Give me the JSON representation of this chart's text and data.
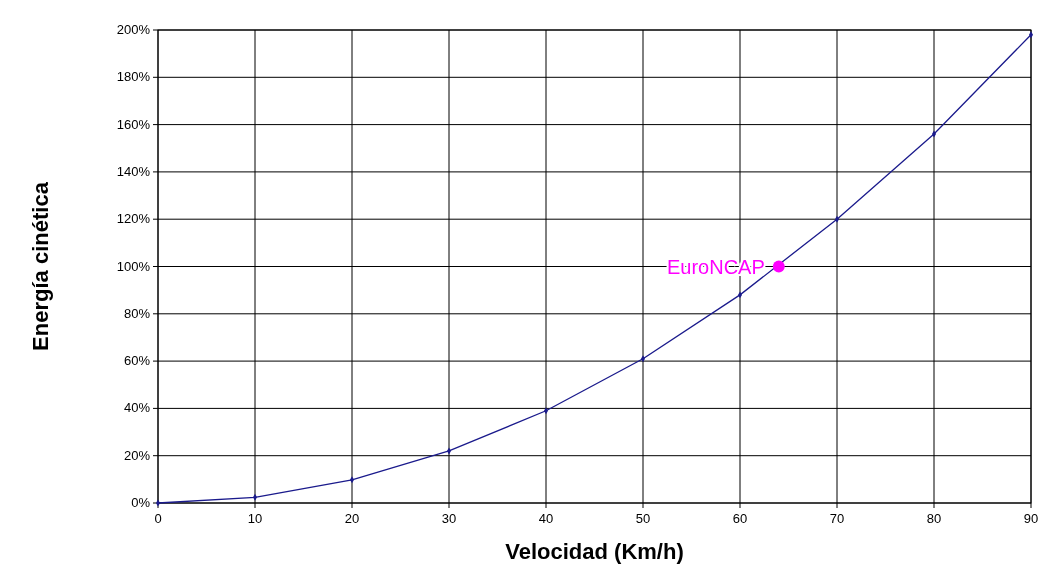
{
  "chart_data": {
    "type": "line",
    "xlabel": "Velocidad (Km/h)",
    "ylabel": "Energía cinética",
    "x": [
      0,
      10,
      20,
      30,
      40,
      50,
      60,
      70,
      80,
      90
    ],
    "series": [
      {
        "color": "#1a1a8c",
        "values": [
          0,
          2.4,
          9.8,
          22,
          39,
          61,
          88,
          120,
          156,
          198
        ]
      },
      {
        "type": "scatter",
        "name": "EuroNCAP",
        "color": "#ff00ff",
        "x": [
          64
        ],
        "values": [
          100
        ],
        "marker": "circle"
      }
    ],
    "xlim": [
      0,
      90
    ],
    "xticks": [
      0,
      10,
      20,
      30,
      40,
      50,
      60,
      70,
      80,
      90
    ],
    "ylim": [
      0,
      200
    ],
    "yticks": [
      {
        "value": 0,
        "label": "0%"
      },
      {
        "value": 20,
        "label": "20%"
      },
      {
        "value": 40,
        "label": "40%"
      },
      {
        "value": 60,
        "label": "60%"
      },
      {
        "value": 80,
        "label": "80%"
      },
      {
        "value": 100,
        "label": "100%"
      },
      {
        "value": 120,
        "label": "120%"
      },
      {
        "value": 140,
        "label": "140%"
      },
      {
        "value": 160,
        "label": "160%"
      },
      {
        "value": 180,
        "label": "180%"
      },
      {
        "value": 200,
        "label": "200%"
      }
    ],
    "grid": true,
    "marker": "diamond",
    "line_style": "solid"
  }
}
